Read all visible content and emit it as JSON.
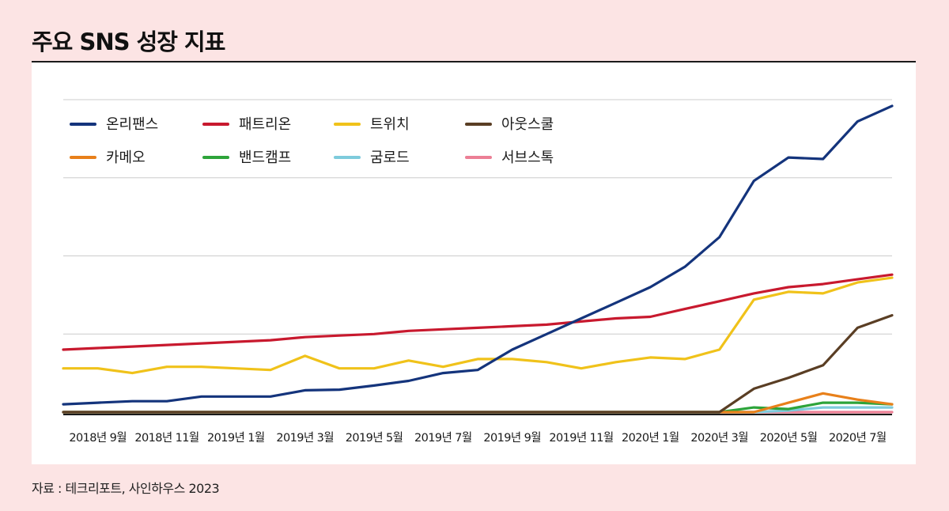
{
  "header": {
    "title": "주요 SNS 성장 지표"
  },
  "footer": {
    "source": "자료 : 테크리포트, 사인하우스 2023"
  },
  "chart_data": {
    "type": "line",
    "title": "주요 SNS 성장 지표",
    "xlabel": "",
    "ylabel": "",
    "ylim": [
      0,
      100
    ],
    "grid": true,
    "legend_position": "top-left",
    "tick_labels": [
      "2018년 9월",
      "2018년 11월",
      "2019년 1월",
      "2019년 3월",
      "2019년 5월",
      "2019년 7월",
      "2019년 9월",
      "2019년 11월",
      "2020년 1월",
      "2020년 3월",
      "2020년 5월",
      "2020년 7월"
    ],
    "x": [
      "2018-08",
      "2018-09",
      "2018-10",
      "2018-11",
      "2018-12",
      "2019-01",
      "2019-02",
      "2019-03",
      "2019-04",
      "2019-05",
      "2019-06",
      "2019-07",
      "2019-08",
      "2019-09",
      "2019-10",
      "2019-11",
      "2019-12",
      "2020-01",
      "2020-02",
      "2020-03",
      "2020-04",
      "2020-05",
      "2020-06",
      "2020-07",
      "2020-08"
    ],
    "series": [
      {
        "name": "온리팬스",
        "color": "#14347c",
        "values": [
          2.5,
          3.0,
          3.5,
          3.5,
          5.0,
          5.0,
          5.0,
          7.0,
          7.2,
          8.5,
          10.0,
          12.5,
          13.5,
          20.0,
          25.0,
          30.0,
          35.0,
          40.0,
          46.5,
          56.0,
          74.0,
          81.5,
          81.0,
          93.0,
          98.0
        ]
      },
      {
        "name": "패트리온",
        "color": "#c8192e",
        "values": [
          20.0,
          20.5,
          21.0,
          21.5,
          22.0,
          22.5,
          23.0,
          24.0,
          24.5,
          25.0,
          26.0,
          26.5,
          27.0,
          27.5,
          28.0,
          29.0,
          30.0,
          30.5,
          33.0,
          35.5,
          38.0,
          40.0,
          41.0,
          42.5,
          44.0
        ]
      },
      {
        "name": "트위치",
        "color": "#f0c21a",
        "values": [
          14.0,
          14.0,
          12.5,
          14.5,
          14.5,
          14.0,
          13.5,
          18.0,
          14.0,
          14.0,
          16.5,
          14.5,
          17.0,
          17.0,
          16.0,
          14.0,
          16.0,
          17.5,
          17.0,
          20.0,
          36.0,
          38.5,
          38.0,
          41.5,
          43.0
        ]
      },
      {
        "name": "아웃스쿨",
        "color": "#5a3e24",
        "values": [
          0.0,
          0.0,
          0.0,
          0.0,
          0.0,
          0.0,
          0.0,
          0.0,
          0.0,
          0.0,
          0.0,
          0.0,
          0.0,
          0.0,
          0.0,
          0.0,
          0.0,
          0.0,
          0.0,
          0.0,
          7.5,
          11.0,
          15.0,
          27.0,
          31.0
        ]
      },
      {
        "name": "카메오",
        "color": "#e8801a",
        "values": [
          0.0,
          0.0,
          0.0,
          0.0,
          0.0,
          0.0,
          0.0,
          0.0,
          0.0,
          0.0,
          0.0,
          0.0,
          0.0,
          0.0,
          0.0,
          0.0,
          0.0,
          0.0,
          0.0,
          0.0,
          0.0,
          3.0,
          6.0,
          4.0,
          2.5
        ]
      },
      {
        "name": "밴드캠프",
        "color": "#2da43a",
        "values": [
          0.0,
          0.0,
          0.0,
          0.0,
          0.0,
          0.0,
          0.0,
          0.0,
          0.0,
          0.0,
          0.0,
          0.0,
          0.0,
          0.0,
          0.0,
          0.0,
          0.0,
          0.0,
          0.0,
          0.0,
          1.5,
          1.0,
          3.0,
          3.0,
          2.5
        ]
      },
      {
        "name": "굼로드",
        "color": "#7ecbdc",
        "values": [
          0.0,
          0.0,
          0.0,
          0.0,
          0.0,
          0.0,
          0.0,
          0.0,
          0.0,
          0.0,
          0.0,
          0.0,
          0.0,
          0.0,
          0.0,
          0.0,
          0.0,
          0.0,
          0.0,
          0.0,
          0.0,
          0.5,
          1.5,
          1.5,
          1.5
        ]
      },
      {
        "name": "서브스톡",
        "color": "#ec7f95",
        "values": [
          0.0,
          0.0,
          0.0,
          0.0,
          0.0,
          0.0,
          0.0,
          0.0,
          0.0,
          0.0,
          0.0,
          0.0,
          0.0,
          0.0,
          0.0,
          0.0,
          0.0,
          0.0,
          0.0,
          0.0,
          0.0,
          0.0,
          0.0,
          0.0,
          0.0
        ]
      }
    ]
  }
}
